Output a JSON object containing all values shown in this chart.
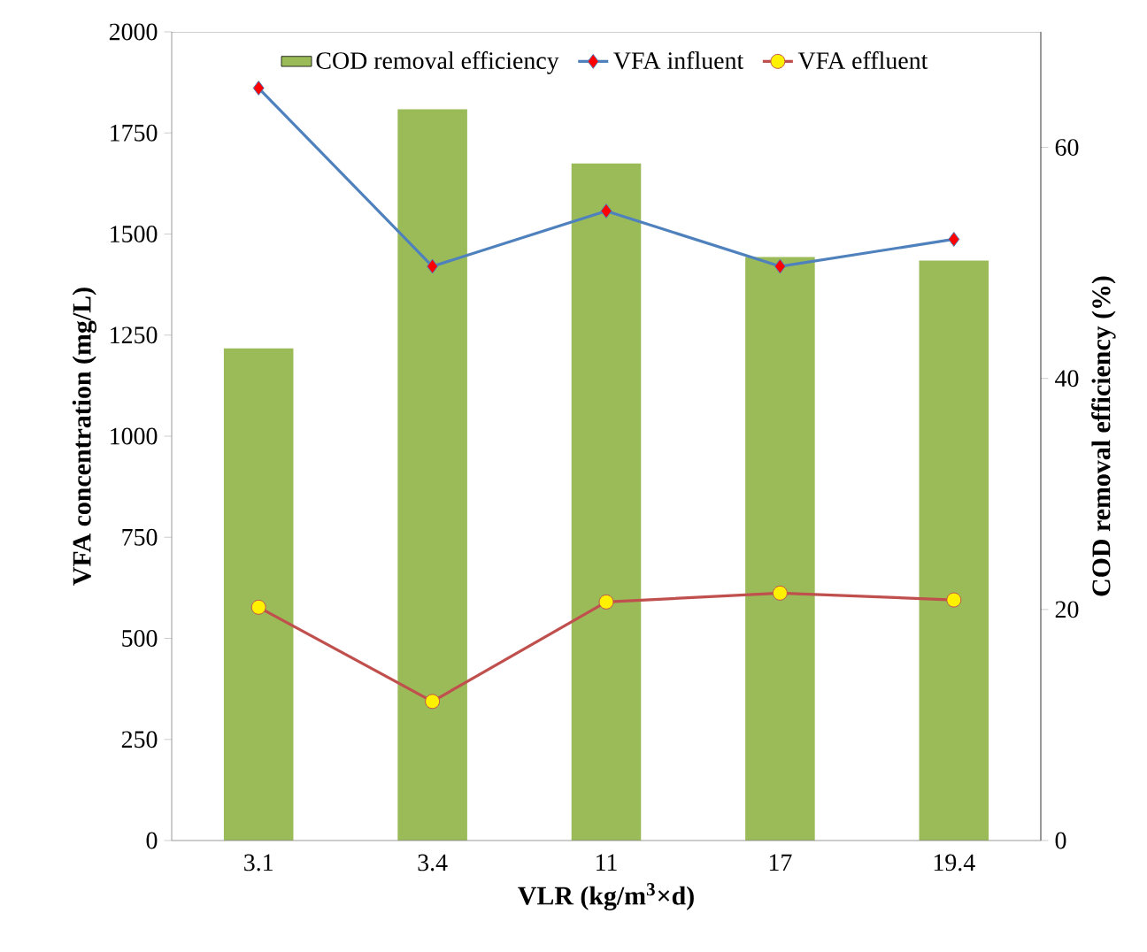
{
  "chart_data": {
    "type": "line",
    "xlabel": "VLR (kg/m$^{3}$×d)",
    "ylabel": "VFA concentration (mg/L)",
    "y2label": "COD removal efficiency (%)",
    "categories": [
      "3.1",
      "3.4",
      "11",
      "17",
      "19.4"
    ],
    "series": [
      {
        "name": "COD removal efficiency",
        "type": "bar",
        "axis": "y2",
        "color": "#9bbb59",
        "values": [
          42.6,
          63.3,
          58.6,
          50.5,
          50.2
        ]
      },
      {
        "name": "VFA influent",
        "color": "#4f81bd",
        "marker": "diamond",
        "values": [
          1861,
          1420,
          1557,
          1420,
          1487
        ]
      },
      {
        "name": "VFA effluent",
        "color": "#c0504d",
        "marker": "circle",
        "values": [
          577,
          344,
          590,
          612,
          595
        ]
      }
    ],
    "ylim": [
      0,
      2000
    ],
    "yticks": [
      0,
      250,
      500,
      750,
      1000,
      1250,
      1500,
      1750,
      2000
    ],
    "y2lim": [
      0,
      70
    ],
    "y2ticks": [
      0,
      20,
      40,
      60
    ],
    "grid": false,
    "legend": "top"
  }
}
